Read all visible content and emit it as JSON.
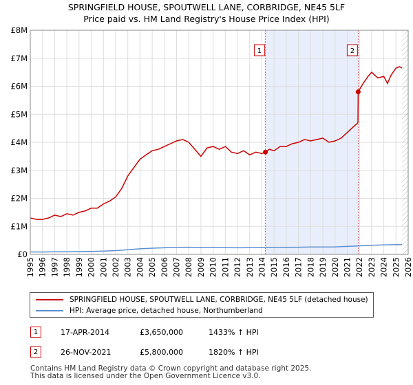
{
  "title_line1": "SPRINGFIELD HOUSE, SPOUTWELL LANE, CORBRIDGE, NE45 5LF",
  "title_line2": "Price paid vs. HM Land Registry's House Price Index (HPI)",
  "colors": {
    "property": "#cc0000",
    "hpi": "#5b8fd0",
    "shade": "#e9eefc",
    "marker_line": "#e06060",
    "grid": "#dddddd"
  },
  "chart_data": {
    "type": "line",
    "title": "SPRINGFIELD HOUSE, SPOUTWELL LANE, CORBRIDGE, NE45 5LF — Price paid vs. HM Land Registry's House Price Index (HPI)",
    "xlim": [
      1995,
      2026
    ],
    "ylim": [
      0,
      8000000
    ],
    "y_ticks": [
      {
        "value": 0,
        "label": "£0"
      },
      {
        "value": 1000000,
        "label": "£1M"
      },
      {
        "value": 2000000,
        "label": "£2M"
      },
      {
        "value": 3000000,
        "label": "£3M"
      },
      {
        "value": 4000000,
        "label": "£4M"
      },
      {
        "value": 5000000,
        "label": "£5M"
      },
      {
        "value": 6000000,
        "label": "£6M"
      },
      {
        "value": 7000000,
        "label": "£7M"
      },
      {
        "value": 8000000,
        "label": "£8M"
      }
    ],
    "x_ticks": [
      "1995",
      "1996",
      "1997",
      "1998",
      "1999",
      "2000",
      "2001",
      "2002",
      "2003",
      "2004",
      "2005",
      "2006",
      "2007",
      "2008",
      "2009",
      "2010",
      "2011",
      "2012",
      "2013",
      "2014",
      "2015",
      "2016",
      "2017",
      "2018",
      "2019",
      "2020",
      "2021",
      "2022",
      "2023",
      "2024",
      "2025",
      "2026"
    ],
    "shaded_range": [
      2014.29,
      2021.9
    ],
    "series": [
      {
        "name": "SPRINGFIELD HOUSE, SPOUTWELL LANE, CORBRIDGE, NE45 5LF (detached house)",
        "x": [
          1995.0,
          1995.5,
          1996.0,
          1996.5,
          1997.0,
          1997.5,
          1998.0,
          1998.5,
          1999.0,
          1999.5,
          2000.0,
          2000.5,
          2001.0,
          2001.5,
          2002.0,
          2002.5,
          2003.0,
          2003.5,
          2004.0,
          2004.5,
          2005.0,
          2005.5,
          2006.0,
          2006.5,
          2007.0,
          2007.5,
          2008.0,
          2008.5,
          2009.0,
          2009.5,
          2010.0,
          2010.5,
          2011.0,
          2011.5,
          2012.0,
          2012.5,
          2013.0,
          2013.5,
          2014.0,
          2014.29,
          2014.6,
          2015.0,
          2015.5,
          2016.0,
          2016.5,
          2017.0,
          2017.5,
          2018.0,
          2018.5,
          2019.0,
          2019.5,
          2020.0,
          2020.5,
          2021.0,
          2021.5,
          2021.88,
          2021.9,
          2022.3,
          2022.7,
          2023.0,
          2023.5,
          2024.0,
          2024.3,
          2024.6,
          2025.0,
          2025.3,
          2025.5
        ],
        "values": [
          1300000,
          1250000,
          1250000,
          1300000,
          1400000,
          1350000,
          1450000,
          1400000,
          1500000,
          1550000,
          1650000,
          1650000,
          1800000,
          1900000,
          2050000,
          2350000,
          2800000,
          3100000,
          3400000,
          3550000,
          3700000,
          3750000,
          3850000,
          3950000,
          4050000,
          4100000,
          4000000,
          3750000,
          3500000,
          3800000,
          3850000,
          3750000,
          3850000,
          3650000,
          3600000,
          3700000,
          3550000,
          3650000,
          3600000,
          3650000,
          3750000,
          3700000,
          3850000,
          3850000,
          3950000,
          4000000,
          4100000,
          4050000,
          4100000,
          4150000,
          4000000,
          4050000,
          4150000,
          4350000,
          4550000,
          4700000,
          5800000,
          6100000,
          6350000,
          6500000,
          6300000,
          6350000,
          6100000,
          6400000,
          6650000,
          6700000,
          6650000
        ]
      },
      {
        "name": "HPI: Average price, detached house, Northumberland",
        "x": [
          1995,
          1996,
          1997,
          1998,
          1999,
          2000,
          2001,
          2002,
          2003,
          2004,
          2005,
          2006,
          2007,
          2008,
          2009,
          2010,
          2011,
          2012,
          2013,
          2014,
          2015,
          2016,
          2017,
          2018,
          2019,
          2020,
          2021,
          2022,
          2023,
          2024,
          2025,
          2025.5
        ],
        "values": [
          85000,
          87000,
          90000,
          93000,
          98000,
          105000,
          115000,
          135000,
          165000,
          200000,
          220000,
          235000,
          250000,
          255000,
          240000,
          242000,
          238000,
          235000,
          237000,
          240000,
          245000,
          250000,
          255000,
          262000,
          265000,
          268000,
          285000,
          305000,
          325000,
          335000,
          345000,
          350000
        ]
      }
    ],
    "sales": [
      {
        "label": "1",
        "x": 2014.29,
        "value": 3650000,
        "date": "17-APR-2014",
        "price": "£3,650,000",
        "hpi": "1433% ↑ HPI"
      },
      {
        "label": "2",
        "x": 2021.9,
        "value": 5800000,
        "date": "26-NOV-2021",
        "price": "£5,800,000",
        "hpi": "1820% ↑ HPI"
      }
    ]
  },
  "legend": {
    "property_label": "SPRINGFIELD HOUSE, SPOUTWELL LANE, CORBRIDGE, NE45 5LF (detached house)",
    "hpi_label": "HPI: Average price, detached house, Northumberland"
  },
  "footer_line1": "Contains HM Land Registry data © Crown copyright and database right 2025.",
  "footer_line2": "This data is licensed under the Open Government Licence v3.0."
}
